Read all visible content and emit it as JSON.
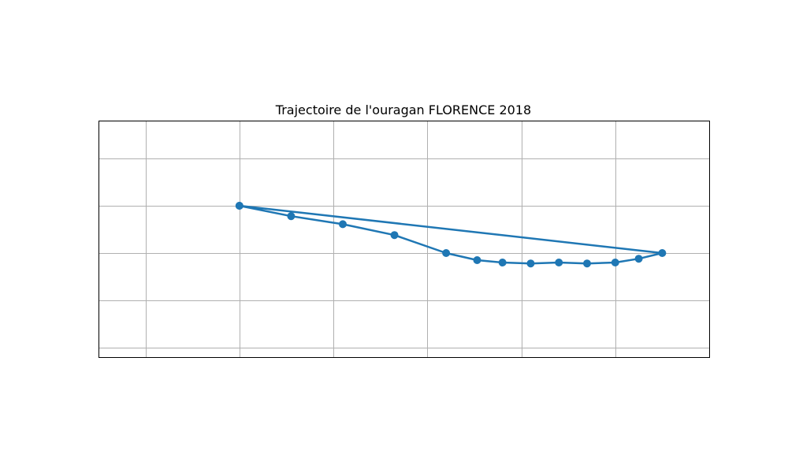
{
  "chart_data": {
    "type": "line",
    "title": "Trajectoire de l'ouragan FLORENCE 2018",
    "xlabel": "",
    "ylabel": "",
    "xlim": [
      -1.5,
      5
    ],
    "ylim": [
      -0.2,
      4.8
    ],
    "x_gridlines": [
      -1,
      0,
      1,
      2,
      3,
      4,
      5
    ],
    "y_gridlines": [
      0,
      1,
      2,
      3,
      4
    ],
    "grid": true,
    "series": [
      {
        "marker": "circle",
        "color": "#1f77b4",
        "points": [
          {
            "x": 0.0,
            "y": 3.0
          },
          {
            "x": 0.55,
            "y": 2.78
          },
          {
            "x": 1.1,
            "y": 2.61
          },
          {
            "x": 1.65,
            "y": 2.38
          },
          {
            "x": 2.2,
            "y": 2.0
          },
          {
            "x": 2.53,
            "y": 1.85
          },
          {
            "x": 2.8,
            "y": 1.8
          },
          {
            "x": 3.1,
            "y": 1.78
          },
          {
            "x": 3.4,
            "y": 1.8
          },
          {
            "x": 3.7,
            "y": 1.78
          },
          {
            "x": 4.0,
            "y": 1.8
          },
          {
            "x": 4.25,
            "y": 1.88
          },
          {
            "x": 4.5,
            "y": 2.0
          },
          {
            "x": 0.0,
            "y": 3.0
          }
        ]
      }
    ]
  }
}
